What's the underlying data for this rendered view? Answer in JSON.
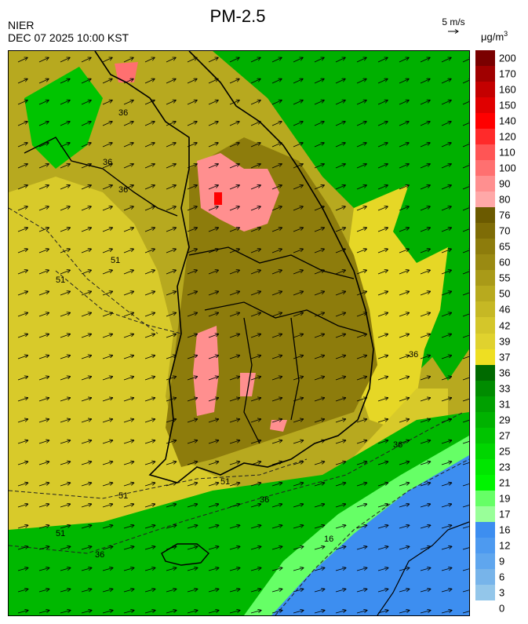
{
  "header": {
    "title": "PM-2.5",
    "agency": "NIER",
    "timestamp": "DEC 07 2025 10:00 KST",
    "vector_scale_label": "5 m/s",
    "unit_base": "μg/m",
    "unit_exp": "3"
  },
  "colorbar": {
    "labels": [
      "200",
      "170",
      "160",
      "150",
      "140",
      "120",
      "110",
      "100",
      "90",
      "80",
      "76",
      "70",
      "65",
      "60",
      "55",
      "50",
      "46",
      "42",
      "39",
      "37",
      "36",
      "33",
      "31",
      "29",
      "27",
      "25",
      "23",
      "21",
      "19",
      "17",
      "16",
      "12",
      "9",
      "6",
      "3",
      "0"
    ],
    "colors": [
      "#7a0000",
      "#a00000",
      "#c40000",
      "#e00000",
      "#ff0000",
      "#ff2a2a",
      "#ff5555",
      "#ff7070",
      "#ff8f8f",
      "#ffa8a8",
      "#6b5a00",
      "#7e6c06",
      "#8d7c0c",
      "#9a8a12",
      "#a99a18",
      "#b8aa1e",
      "#c6b824",
      "#d4c62a",
      "#e0d22e",
      "#eedf22",
      "#006a00",
      "#008c00",
      "#00a000",
      "#00b200",
      "#00c400",
      "#00d600",
      "#00e600",
      "#00f400",
      "#66ff66",
      "#99ff99",
      "#3d8ef0",
      "#4d9af0",
      "#5fa6ee",
      "#77b4ea",
      "#93c6ea"
    ]
  },
  "map": {
    "contour_labels": [
      "36",
      "36",
      "36",
      "51",
      "51",
      "51",
      "51",
      "51",
      "36",
      "36",
      "16",
      "36",
      "36"
    ],
    "wind_direction": "southwesterly to westerly"
  }
}
